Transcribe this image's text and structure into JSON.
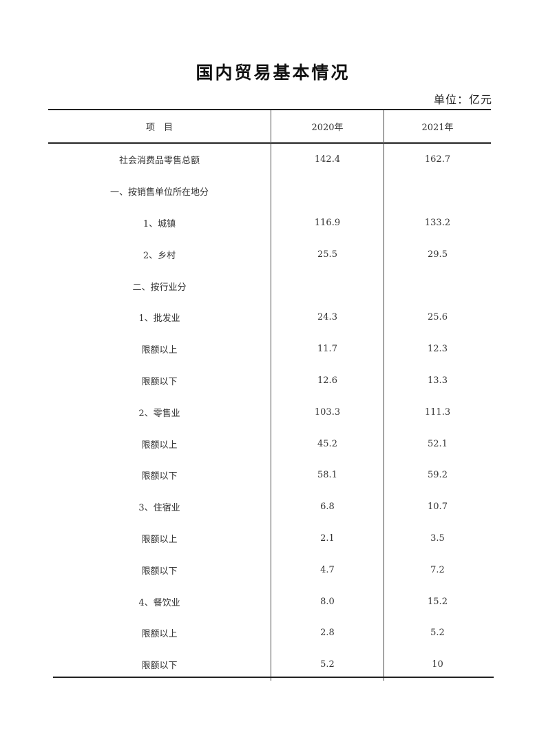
{
  "title": "国内贸易基本情况",
  "unit": "单位：亿元",
  "table": {
    "headers": [
      "项　目",
      "2020年",
      "2021年"
    ],
    "rows": [
      [
        "社会消费品零售总额",
        "142.4",
        "162.7"
      ],
      [
        "一、按销售单位所在地分",
        "",
        ""
      ],
      [
        "1、城镇",
        "116.9",
        "133.2"
      ],
      [
        "2、乡村",
        "25.5",
        "29.5"
      ],
      [
        "二、按行业分",
        "",
        ""
      ],
      [
        "1、批发业",
        "24.3",
        "25.6"
      ],
      [
        "限额以上",
        "11.7",
        "12.3"
      ],
      [
        "限额以下",
        "12.6",
        "13.3"
      ],
      [
        "2、零售业",
        "103.3",
        "111.3"
      ],
      [
        "限额以上",
        "45.2",
        "52.1"
      ],
      [
        "限额以下",
        "58.1",
        "59.2"
      ],
      [
        "3、住宿业",
        "6.8",
        "10.7"
      ],
      [
        "限额以上",
        "2.1",
        "3.5"
      ],
      [
        "限额以下",
        "4.7",
        "7.2"
      ],
      [
        "4、餐饮业",
        "8.0",
        "15.2"
      ],
      [
        "限额以上",
        "2.8",
        "5.2"
      ],
      [
        "限额以下",
        "5.2",
        "10"
      ]
    ]
  }
}
